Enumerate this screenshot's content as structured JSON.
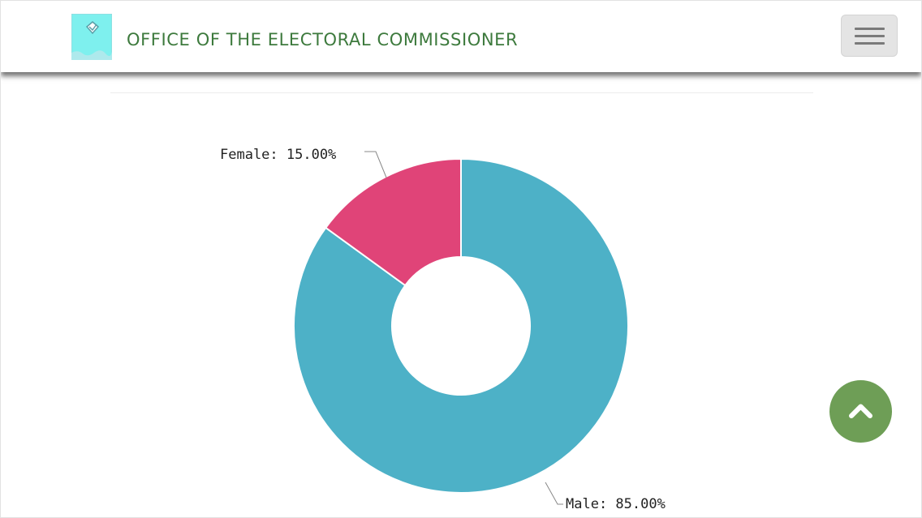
{
  "header": {
    "title": "OFFICE OF THE ELECTORAL COMMISSIONER",
    "logo_icon": "ballot-box-icon",
    "menu_icon": "hamburger-menu-icon"
  },
  "chart_data": {
    "type": "pie",
    "style": "donut",
    "categories": [
      "Male",
      "Female"
    ],
    "values": [
      85.0,
      15.0
    ],
    "labels": [
      "Male: 85.00%",
      "Female: 15.00%"
    ],
    "colors": [
      "#4db1c7",
      "#e04478"
    ],
    "title": ""
  },
  "scroll_top": {
    "icon": "chevron-up-icon",
    "color": "#6e9e56"
  },
  "colors": {
    "brand_text": "#3d7a3d",
    "male": "#4db1c7",
    "female": "#e04478"
  }
}
